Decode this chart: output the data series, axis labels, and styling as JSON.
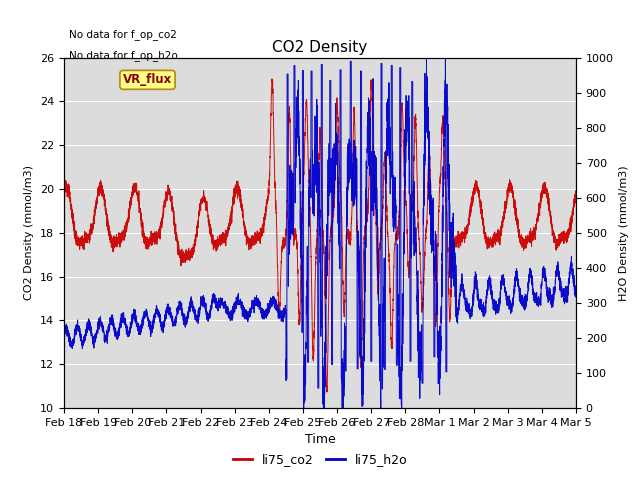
{
  "title": "CO2 Density",
  "xlabel": "Time",
  "ylabel_left": "CO2 Density (mmol/m3)",
  "ylabel_right": "H2O Density (mmol/m3)",
  "ylim_left": [
    10,
    26
  ],
  "ylim_right": [
    0,
    1000
  ],
  "yticks_left": [
    10,
    12,
    14,
    16,
    18,
    20,
    22,
    24,
    26
  ],
  "yticks_right": [
    0,
    100,
    200,
    300,
    400,
    500,
    600,
    700,
    800,
    900,
    1000
  ],
  "bg_color": "#dcdcdc",
  "text_no_data_1": "No data for f_op_co2",
  "text_no_data_2": "No data for f_op_h2o",
  "legend_label_vr": "VR_flux",
  "legend_label_co2": "li75_co2",
  "legend_label_h2o": "li75_h2o",
  "co2_color": "#cc0000",
  "h2o_color": "#0000cc",
  "tick_dates": [
    "Feb 18",
    "Feb 19",
    "Feb 20",
    "Feb 21",
    "Feb 22",
    "Feb 23",
    "Feb 24",
    "Feb 25",
    "Feb 26",
    "Feb 27",
    "Feb 28",
    "Mar 1",
    "Mar 2",
    "Mar 3",
    "Mar 4",
    "Mar 5"
  ],
  "n_days": 15
}
